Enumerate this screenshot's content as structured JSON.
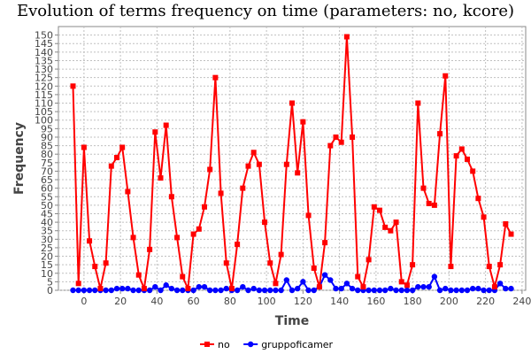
{
  "chart_data": {
    "type": "line",
    "title": "Evolution of terms frequency on time (parameters: no, kcore)",
    "xlabel": "Time",
    "ylabel": "Frequency",
    "xlim": [
      -14,
      242
    ],
    "ylim": [
      0,
      155
    ],
    "xticks": [
      0,
      20,
      40,
      60,
      80,
      100,
      120,
      140,
      160,
      180,
      200,
      220,
      240
    ],
    "yticks": [
      0,
      5,
      10,
      15,
      20,
      25,
      30,
      35,
      40,
      45,
      50,
      55,
      60,
      65,
      70,
      75,
      80,
      85,
      90,
      95,
      100,
      105,
      110,
      115,
      120,
      125,
      130,
      135,
      140,
      145,
      150
    ],
    "grid": true,
    "legend_position": "bottom",
    "x": [
      -6,
      -3,
      0,
      3,
      6,
      9,
      12,
      15,
      18,
      21,
      24,
      27,
      30,
      33,
      36,
      39,
      42,
      45,
      48,
      51,
      54,
      57,
      60,
      63,
      66,
      69,
      72,
      75,
      78,
      81,
      84,
      87,
      90,
      93,
      96,
      99,
      102,
      105,
      108,
      111,
      114,
      117,
      120,
      123,
      126,
      129,
      132,
      135,
      138,
      141,
      144,
      147,
      150,
      153,
      156,
      159,
      162,
      165,
      168,
      171,
      174,
      177,
      180,
      183,
      186,
      189,
      192,
      195,
      198,
      201,
      204,
      207,
      210,
      213,
      216,
      219,
      222,
      225,
      228,
      231,
      234
    ],
    "series": [
      {
        "name": "no",
        "color": "#ff0000",
        "marker": "square",
        "values": [
          120,
          4,
          84,
          29,
          14,
          1,
          16,
          73,
          78,
          84,
          58,
          31,
          9,
          1,
          24,
          93,
          66,
          97,
          55,
          31,
          8,
          1,
          33,
          36,
          49,
          71,
          125,
          57,
          16,
          1,
          27,
          60,
          73,
          81,
          74,
          40,
          16,
          4,
          21,
          74,
          110,
          69,
          99,
          44,
          13,
          2,
          28,
          85,
          90,
          87,
          149,
          90,
          8,
          2,
          18,
          49,
          47,
          37,
          35,
          40,
          5,
          3,
          15,
          110,
          60,
          51,
          50,
          92,
          126,
          14,
          79,
          83,
          77,
          70,
          54,
          43,
          14,
          2,
          15,
          39,
          33
        ]
      },
      {
        "name": "gruppoficamer",
        "color": "#0000ff",
        "marker": "circle",
        "values": [
          0,
          0,
          0,
          0,
          0,
          0,
          0,
          0,
          1,
          1,
          1,
          0,
          0,
          0,
          0,
          2,
          0,
          3,
          1,
          0,
          0,
          0,
          0,
          2,
          2,
          0,
          0,
          0,
          1,
          0,
          0,
          2,
          0,
          1,
          0,
          0,
          0,
          0,
          0,
          6,
          0,
          1,
          5,
          0,
          0,
          2,
          9,
          6,
          1,
          1,
          4,
          1,
          0,
          0,
          0,
          0,
          0,
          0,
          1,
          0,
          0,
          0,
          0,
          2,
          2,
          2,
          8,
          0,
          1,
          0,
          0,
          0,
          0,
          1,
          1,
          0,
          0,
          0,
          4,
          1,
          1
        ]
      }
    ]
  }
}
